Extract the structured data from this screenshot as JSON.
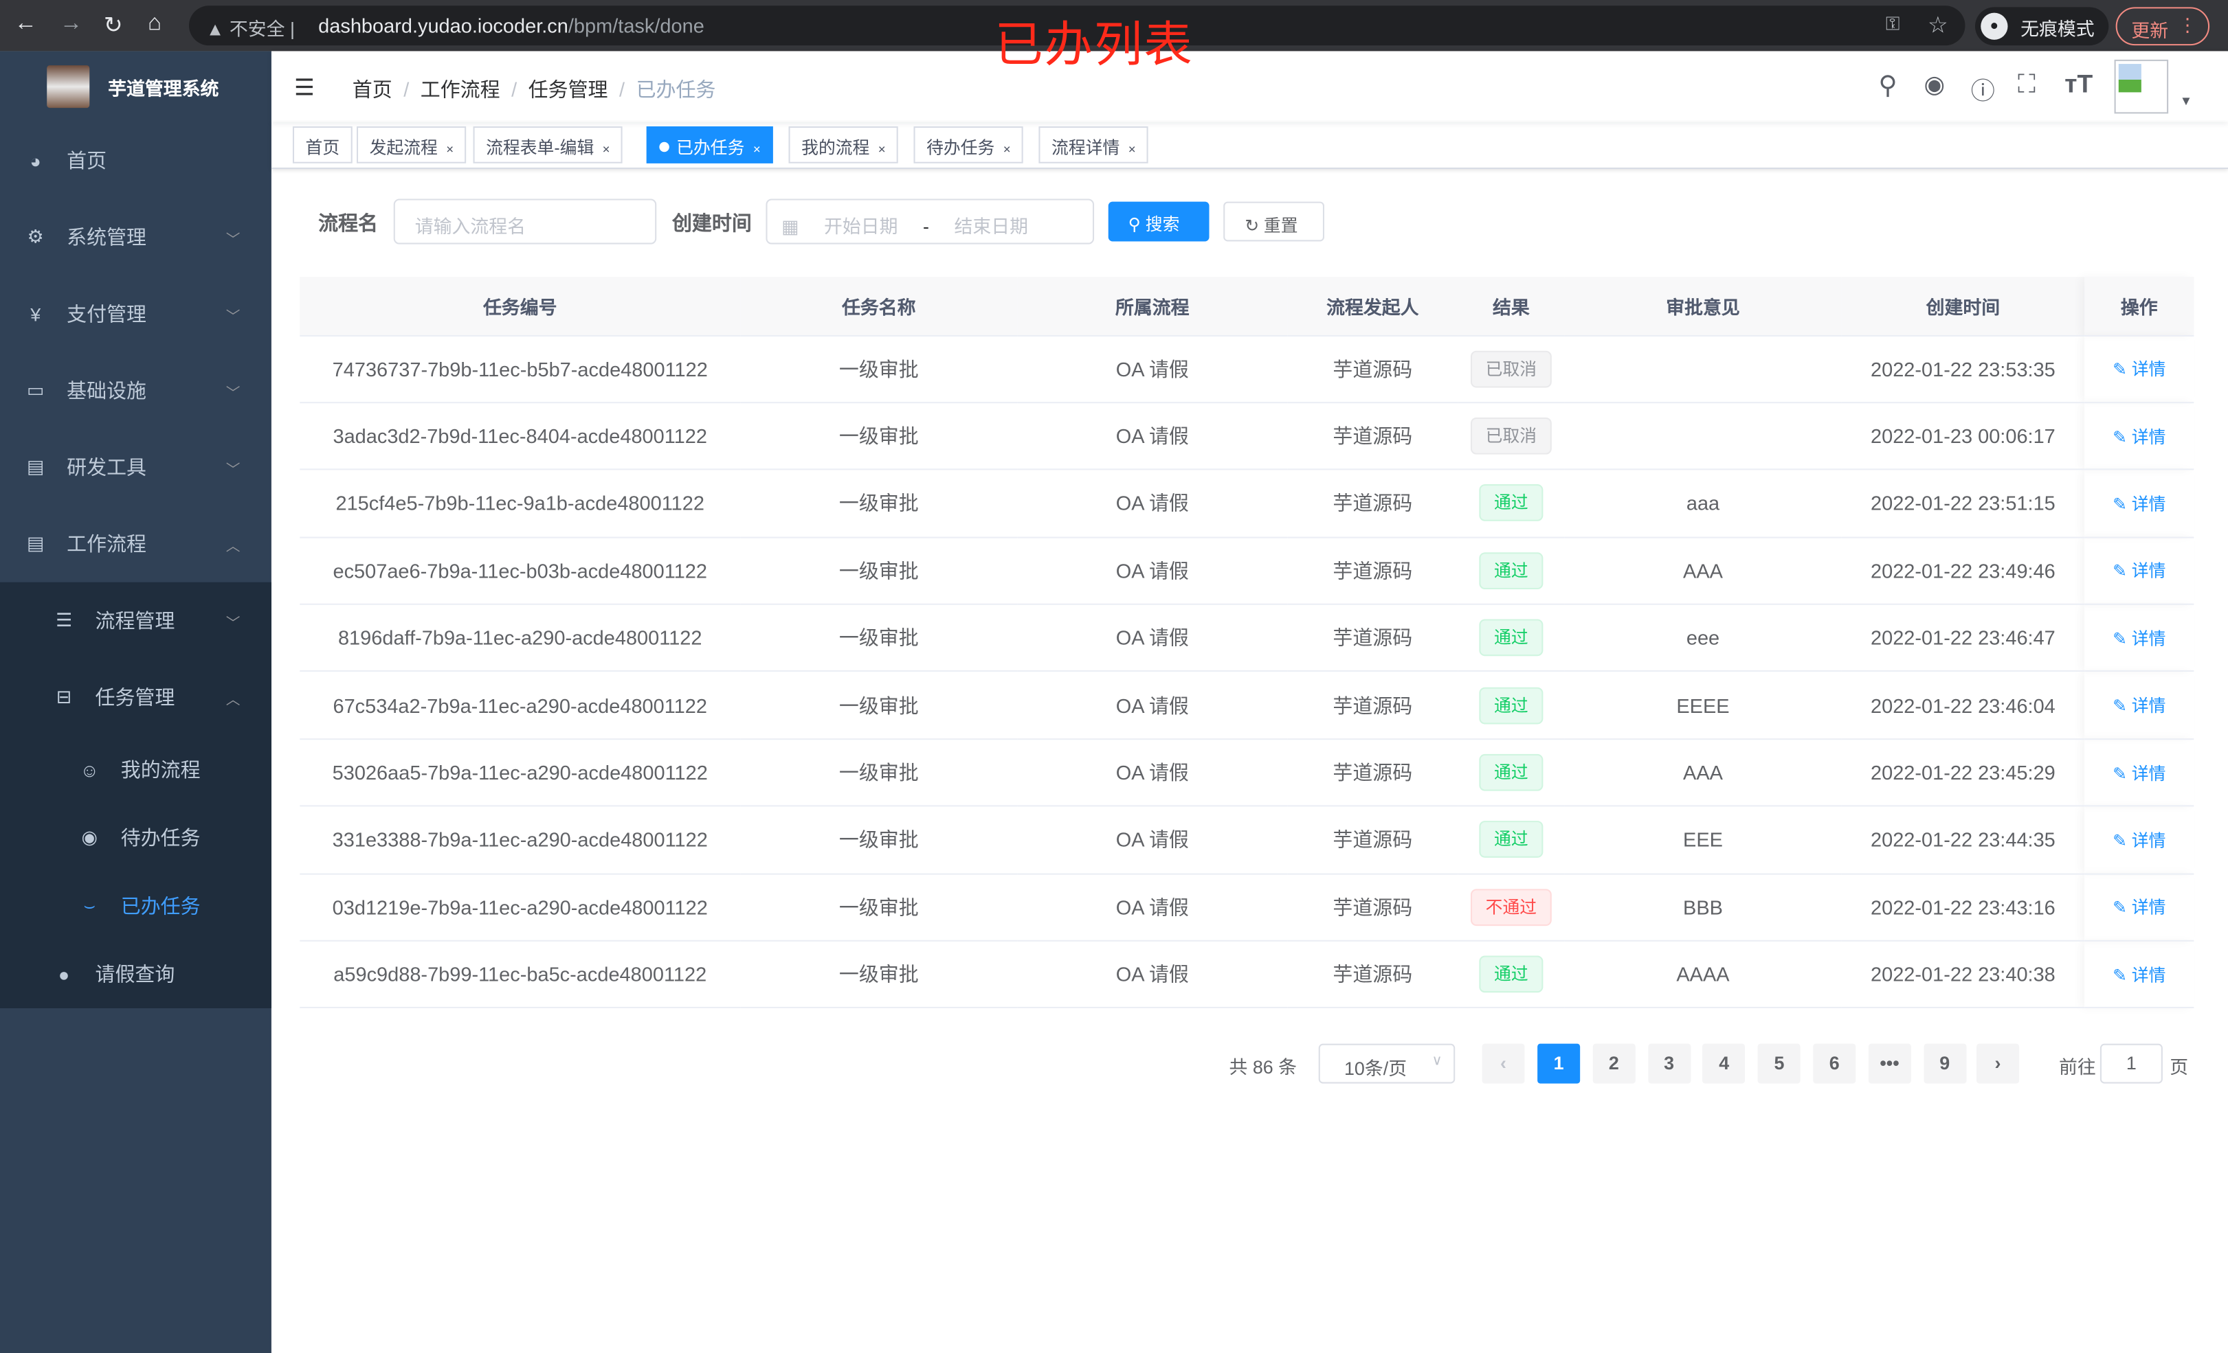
{
  "browser": {
    "security": "不安全",
    "url_host": "dashboard.yudao.iocoder.cn",
    "url_path": "/bpm/task/done",
    "incognito": "无痕模式",
    "update": "更新"
  },
  "overlay_title": "已办列表",
  "sidebar": {
    "app_name": "芋道管理系统",
    "items": [
      {
        "label": "首页",
        "icon": "dashboard-icon"
      },
      {
        "label": "系统管理",
        "icon": "gear-icon"
      },
      {
        "label": "支付管理",
        "icon": "yen-icon"
      },
      {
        "label": "基础设施",
        "icon": "monitor-icon"
      },
      {
        "label": "研发工具",
        "icon": "toolbox-icon"
      },
      {
        "label": "工作流程",
        "icon": "toolbox-icon"
      }
    ],
    "workflow_children": [
      {
        "label": "流程管理",
        "icon": "tree-icon"
      },
      {
        "label": "任务管理",
        "icon": "tree-table-icon"
      }
    ],
    "task_children": [
      {
        "label": "我的流程",
        "icon": "people-icon"
      },
      {
        "label": "待办任务",
        "icon": "eye-icon"
      },
      {
        "label": "已办任务",
        "icon": "eye-closed-icon",
        "active": true
      }
    ],
    "leave": {
      "label": "请假查询",
      "icon": "user-icon"
    }
  },
  "breadcrumb": [
    "首页",
    "工作流程",
    "任务管理",
    "已办任务"
  ],
  "tags": [
    {
      "label": "首页",
      "closable": false
    },
    {
      "label": "发起流程",
      "closable": true
    },
    {
      "label": "流程表单-编辑",
      "closable": true
    },
    {
      "label": "已办任务",
      "closable": true,
      "active": true
    },
    {
      "label": "我的流程",
      "closable": true
    },
    {
      "label": "待办任务",
      "closable": true
    },
    {
      "label": "流程详情",
      "closable": true
    }
  ],
  "search": {
    "name_label": "流程名",
    "name_placeholder": "请输入流程名",
    "time_label": "创建时间",
    "start_placeholder": "开始日期",
    "range_sep": "-",
    "end_placeholder": "结束日期",
    "search_btn": "搜索",
    "reset_btn": "重置"
  },
  "table": {
    "columns": [
      "任务编号",
      "任务名称",
      "所属流程",
      "流程发起人",
      "结果",
      "审批意见",
      "创建时间",
      "操作"
    ],
    "action_label": "详情",
    "rows": [
      {
        "id": "74736737-7b9b-11ec-b5b7-acde48001122",
        "name": "一级审批",
        "process": "OA 请假",
        "starter": "芋道源码",
        "result": "已取消",
        "status": "cancel",
        "comment": "",
        "time": "2022-01-22 23:53:35"
      },
      {
        "id": "3adac3d2-7b9d-11ec-8404-acde48001122",
        "name": "一级审批",
        "process": "OA 请假",
        "starter": "芋道源码",
        "result": "已取消",
        "status": "cancel",
        "comment": "",
        "time": "2022-01-23 00:06:17"
      },
      {
        "id": "215cf4e5-7b9b-11ec-9a1b-acde48001122",
        "name": "一级审批",
        "process": "OA 请假",
        "starter": "芋道源码",
        "result": "通过",
        "status": "pass",
        "comment": "aaa",
        "time": "2022-01-22 23:51:15"
      },
      {
        "id": "ec507ae6-7b9a-11ec-b03b-acde48001122",
        "name": "一级审批",
        "process": "OA 请假",
        "starter": "芋道源码",
        "result": "通过",
        "status": "pass",
        "comment": "AAA",
        "time": "2022-01-22 23:49:46"
      },
      {
        "id": "8196daff-7b9a-11ec-a290-acde48001122",
        "name": "一级审批",
        "process": "OA 请假",
        "starter": "芋道源码",
        "result": "通过",
        "status": "pass",
        "comment": "eee",
        "time": "2022-01-22 23:46:47"
      },
      {
        "id": "67c534a2-7b9a-11ec-a290-acde48001122",
        "name": "一级审批",
        "process": "OA 请假",
        "starter": "芋道源码",
        "result": "通过",
        "status": "pass",
        "comment": "EEEE",
        "time": "2022-01-22 23:46:04"
      },
      {
        "id": "53026aa5-7b9a-11ec-a290-acde48001122",
        "name": "一级审批",
        "process": "OA 请假",
        "starter": "芋道源码",
        "result": "通过",
        "status": "pass",
        "comment": "AAA",
        "time": "2022-01-22 23:45:29"
      },
      {
        "id": "331e3388-7b9a-11ec-a290-acde48001122",
        "name": "一级审批",
        "process": "OA 请假",
        "starter": "芋道源码",
        "result": "通过",
        "status": "pass",
        "comment": "EEE",
        "time": "2022-01-22 23:44:35"
      },
      {
        "id": "03d1219e-7b9a-11ec-a290-acde48001122",
        "name": "一级审批",
        "process": "OA 请假",
        "starter": "芋道源码",
        "result": "不通过",
        "status": "fail",
        "comment": "BBB",
        "time": "2022-01-22 23:43:16"
      },
      {
        "id": "a59c9d88-7b99-11ec-ba5c-acde48001122",
        "name": "一级审批",
        "process": "OA 请假",
        "starter": "芋道源码",
        "result": "通过",
        "status": "pass",
        "comment": "AAAA",
        "time": "2022-01-22 23:40:38"
      }
    ]
  },
  "pagination": {
    "total": "共 86 条",
    "page_size": "10条/页",
    "pages": [
      "1",
      "2",
      "3",
      "4",
      "5",
      "6",
      "•••",
      "9"
    ],
    "current": "1",
    "goto_label": "前往",
    "goto_value": "1",
    "page_suffix": "页"
  },
  "colors": {
    "primary": "#1890ff",
    "sidebar": "#304156",
    "active_menu": "#409eff",
    "pass": "#13ce66",
    "fail": "#ff4949"
  }
}
